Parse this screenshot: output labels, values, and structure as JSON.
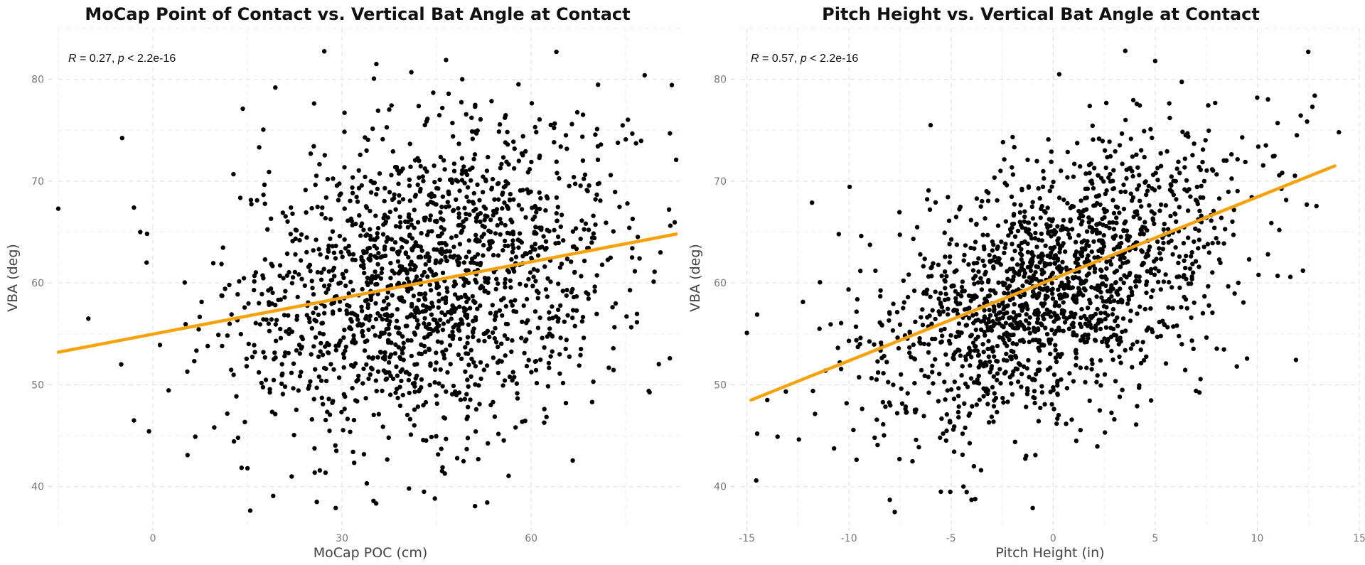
{
  "colors": {
    "points": "#000000",
    "fit_line": "#f5a20c",
    "background": "#ffffff",
    "grid": "#e2e2e2"
  },
  "chart_data": [
    {
      "type": "scatter",
      "title": "MoCap Point of Contact vs. Vertical Bat Angle at Contact",
      "xlabel": "MoCap POC (cm)",
      "ylabel": "VBA (deg)",
      "xlim": [
        -15,
        84
      ],
      "ylim": [
        36,
        85
      ],
      "xticks": [
        0,
        30,
        60
      ],
      "xtick_labels": [
        "0",
        "30",
        "60"
      ],
      "yticks": [
        40,
        50,
        60,
        70,
        80
      ],
      "ytick_labels": [
        "40",
        "50",
        "60",
        "70",
        "80"
      ],
      "grid": true,
      "annotation": {
        "r_label": "R",
        "r_value": "= 0.27,",
        "p_label": "p",
        "p_value": "< 2.2e-16"
      },
      "fit_line": {
        "x": [
          -15,
          83
        ],
        "y": [
          53.2,
          64.8
        ]
      },
      "n_points": 1700,
      "point_mean": [
        44,
        59.5
      ],
      "point_sd": [
        15.5,
        7.5
      ],
      "outliers": [
        [
          -15,
          67.3
        ],
        [
          -3,
          67.4
        ],
        [
          -2,
          65
        ],
        [
          -1,
          62
        ],
        [
          -3,
          46.5
        ],
        [
          5.5,
          43.1
        ],
        [
          13.5,
          44.8
        ],
        [
          15,
          41.8
        ],
        [
          26,
          38.5
        ],
        [
          29,
          37.9
        ],
        [
          35,
          38.6
        ],
        [
          43,
          39.5
        ],
        [
          64,
          82.7
        ],
        [
          46.5,
          81.9
        ],
        [
          41,
          80.7
        ],
        [
          78,
          80.4
        ],
        [
          82,
          74.7
        ],
        [
          75,
          74.1
        ],
        [
          83,
          72.1
        ],
        [
          80.5,
          63
        ],
        [
          76,
          62.5
        ]
      ]
    },
    {
      "type": "scatter",
      "title": "Pitch Height vs. Vertical Bat Angle at Contact",
      "xlabel": "Pitch Height (in)",
      "ylabel": "VBA (deg)",
      "xlim": [
        -15.3,
        15
      ],
      "ylim": [
        36,
        85
      ],
      "xticks": [
        -15,
        -10,
        -5,
        0,
        5,
        10,
        15
      ],
      "xtick_labels": [
        "-15",
        "-10",
        "-5",
        "0",
        "5",
        "10",
        "15"
      ],
      "yticks": [
        40,
        50,
        60,
        70,
        80
      ],
      "ytick_labels": [
        "40",
        "50",
        "60",
        "70",
        "80"
      ],
      "grid": true,
      "annotation": {
        "r_label": "R",
        "r_value": "= 0.57,",
        "p_label": "p",
        "p_value": "< 2.2e-16"
      },
      "fit_line": {
        "x": [
          -14.8,
          13.8
        ],
        "y": [
          48.5,
          71.5
        ]
      },
      "n_points": 1700,
      "point_mean": [
        0,
        59.6
      ],
      "point_sd": [
        4.5,
        6.2
      ],
      "slope": 0.8,
      "outliers": [
        [
          -15,
          55.1
        ],
        [
          -14.5,
          56.9
        ],
        [
          -14.5,
          45.2
        ],
        [
          -14,
          48.5
        ],
        [
          -13.5,
          44.9
        ],
        [
          -10.5,
          64.8
        ],
        [
          -6,
          75.5
        ],
        [
          -8,
          38.7
        ],
        [
          -5.5,
          39.5
        ],
        [
          -4,
          38.7
        ],
        [
          -1,
          37.9
        ],
        [
          0.3,
          80.5
        ],
        [
          5,
          81.8
        ],
        [
          12.5,
          82.7
        ],
        [
          12.7,
          77.3
        ],
        [
          14,
          74.8
        ],
        [
          11,
          75.7
        ],
        [
          10,
          78.2
        ],
        [
          9,
          51.8
        ],
        [
          11,
          60.7
        ],
        [
          7,
          49.4
        ],
        [
          3,
          46.6
        ]
      ]
    }
  ]
}
